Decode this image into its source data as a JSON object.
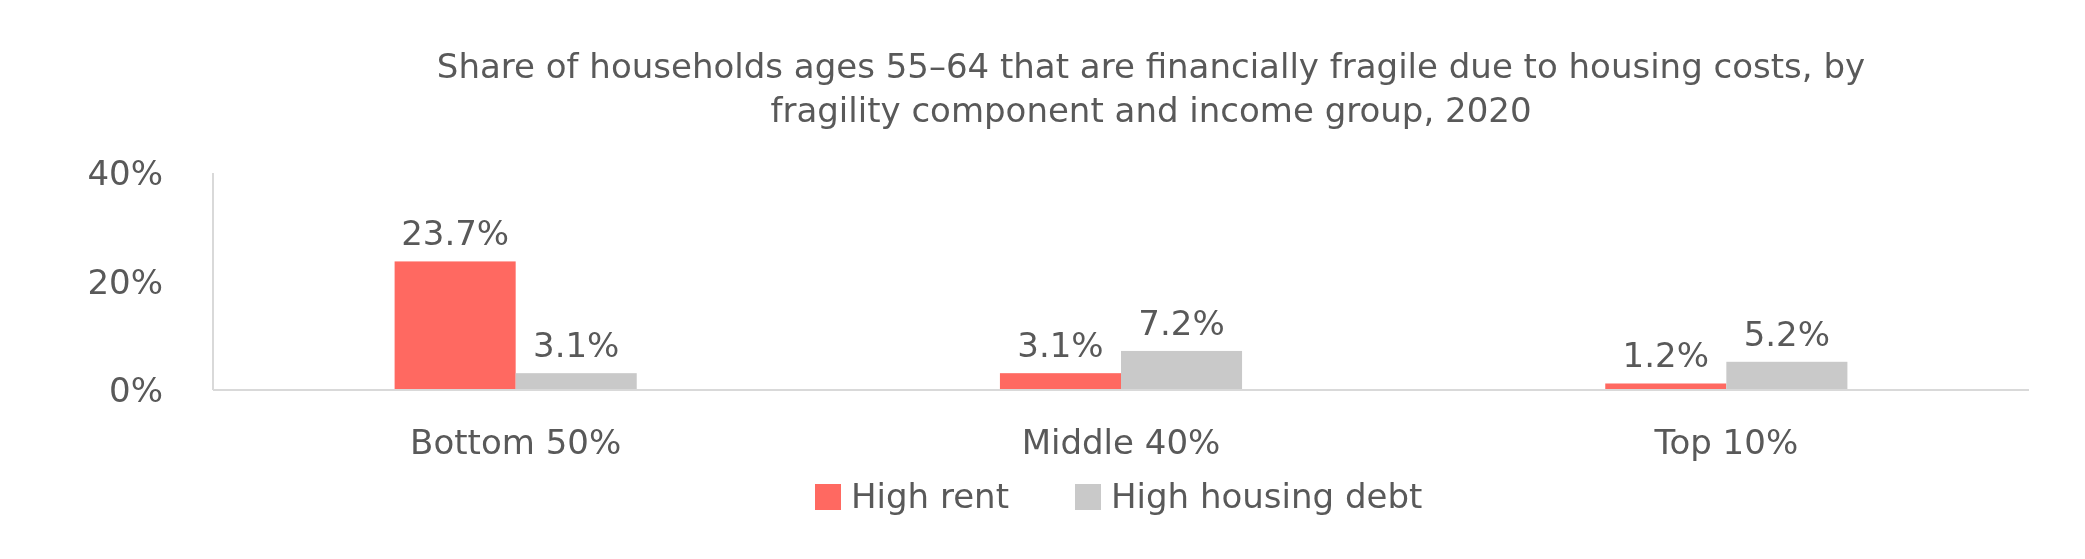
{
  "chart_data": {
    "type": "bar",
    "title": "Share of households ages 55–64 that are financially fragile due to housing costs, by fragility component and income group, 2020",
    "categories": [
      "Bottom 50%",
      "Middle 40%",
      "Top 10%"
    ],
    "series": [
      {
        "name": "High rent",
        "color": "#ff6961",
        "values": [
          23.7,
          3.1,
          1.2
        ],
        "value_labels": [
          "23.7%",
          "3.1%",
          "1.2%"
        ]
      },
      {
        "name": "High housing debt",
        "color": "#c9c9c9",
        "values": [
          3.1,
          7.2,
          5.2
        ],
        "value_labels": [
          "3.1%",
          "7.2%",
          "5.2%"
        ]
      }
    ],
    "ylim": [
      0,
      40
    ],
    "yticks": [
      {
        "value": 0,
        "label": "0%"
      },
      {
        "value": 20,
        "label": "20%"
      },
      {
        "value": 40,
        "label": "40%"
      }
    ],
    "grid": false,
    "legend": "bottom"
  }
}
